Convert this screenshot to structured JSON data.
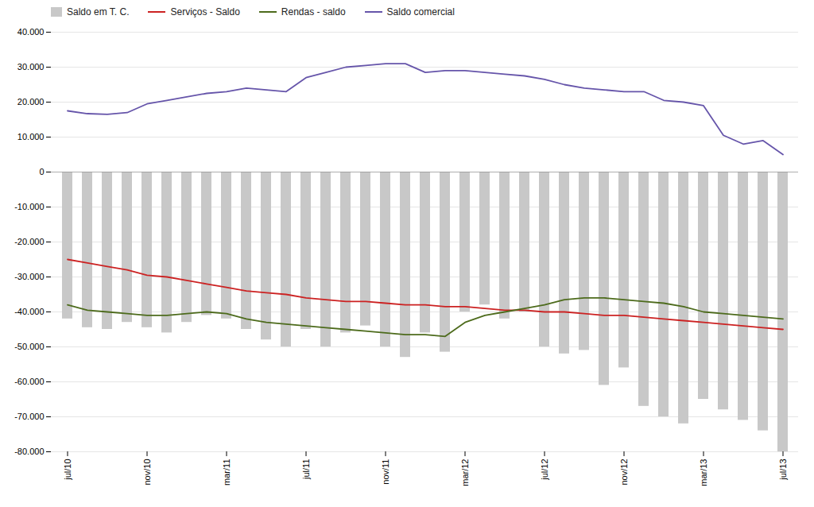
{
  "chart_data": {
    "type": "bar",
    "categories": [
      "jul/10",
      null,
      null,
      null,
      "nov/10",
      null,
      null,
      null,
      "mar/11",
      null,
      null,
      null,
      "jul/11",
      null,
      null,
      null,
      "nov/11",
      null,
      null,
      null,
      "mar/12",
      null,
      null,
      null,
      "jul/12",
      null,
      null,
      null,
      "nov/12",
      null,
      null,
      null,
      "mar/13",
      null,
      null,
      null,
      "jul/13"
    ],
    "series": [
      {
        "name": "Saldo em T. C.",
        "type": "bar",
        "color": "#c8c8c8",
        "values": [
          -42000,
          -44500,
          -45000,
          -43000,
          -44500,
          -46000,
          -43000,
          -41000,
          -42000,
          -45000,
          -48000,
          -50000,
          -45000,
          -50000,
          -46000,
          -44000,
          -50000,
          -53000,
          -46000,
          -51500,
          -40000,
          -38000,
          -42000,
          -40000,
          -50000,
          -52000,
          -51000,
          -61000,
          -56000,
          -67000,
          -70000,
          -72000,
          -65000,
          -68000,
          -71000,
          -74000,
          -80000
        ]
      },
      {
        "name": "Serviços - Saldo",
        "type": "line",
        "color": "#cc2222",
        "values": [
          -25000,
          -26000,
          -27000,
          -28000,
          -29500,
          -30000,
          -31000,
          -32000,
          -33000,
          -34000,
          -34500,
          -35000,
          -36000,
          -36500,
          -37000,
          -37000,
          -37500,
          -38000,
          -38000,
          -38500,
          -38500,
          -39000,
          -39500,
          -39500,
          -40000,
          -40000,
          -40500,
          -41000,
          -41000,
          -41500,
          -42000,
          -42500,
          -43000,
          -43500,
          -44000,
          -44500,
          -45000
        ]
      },
      {
        "name": "Rendas - saldo",
        "type": "line",
        "color": "#4d6b1c",
        "values": [
          -38000,
          -39500,
          -40000,
          -40500,
          -41000,
          -41000,
          -40500,
          -40000,
          -40500,
          -42000,
          -43000,
          -43500,
          -44000,
          -44500,
          -45000,
          -45500,
          -46000,
          -46500,
          -46500,
          -47000,
          -43000,
          -41000,
          -40000,
          -39000,
          -38000,
          -36500,
          -36000,
          -36000,
          -36500,
          -37000,
          -37500,
          -38500,
          -40000,
          -40500,
          -41000,
          -41500,
          -42000
        ]
      },
      {
        "name": "Saldo comercial",
        "type": "line",
        "color": "#6655aa",
        "values": [
          17500,
          16700,
          16500,
          17000,
          19500,
          20500,
          21500,
          22500,
          23000,
          24000,
          23500,
          23000,
          27000,
          28500,
          30000,
          30500,
          31000,
          31000,
          28500,
          29000,
          29000,
          28500,
          28000,
          27500,
          26500,
          25000,
          24000,
          23500,
          23000,
          23000,
          20500,
          20000,
          19000,
          10500,
          8000,
          9000,
          5000
        ]
      }
    ],
    "ylim": [
      -80000,
      40000
    ],
    "yticks": [
      {
        "value": -80000,
        "label": "-80.000"
      },
      {
        "value": -70000,
        "label": "-70.000"
      },
      {
        "value": -60000,
        "label": "-60.000"
      },
      {
        "value": -50000,
        "label": "-50.000"
      },
      {
        "value": -40000,
        "label": "-40.000"
      },
      {
        "value": -30000,
        "label": "-30.000"
      },
      {
        "value": -20000,
        "label": "-20.000"
      },
      {
        "value": -10000,
        "label": "-10.000"
      },
      0,
      {
        "value": 10000,
        "label": "10.000"
      },
      {
        "value": 20000,
        "label": "20.000"
      },
      {
        "value": 30000,
        "label": "30.000"
      },
      {
        "value": 40000,
        "label": "40.000"
      }
    ],
    "grid": true,
    "legend": "upper left"
  }
}
